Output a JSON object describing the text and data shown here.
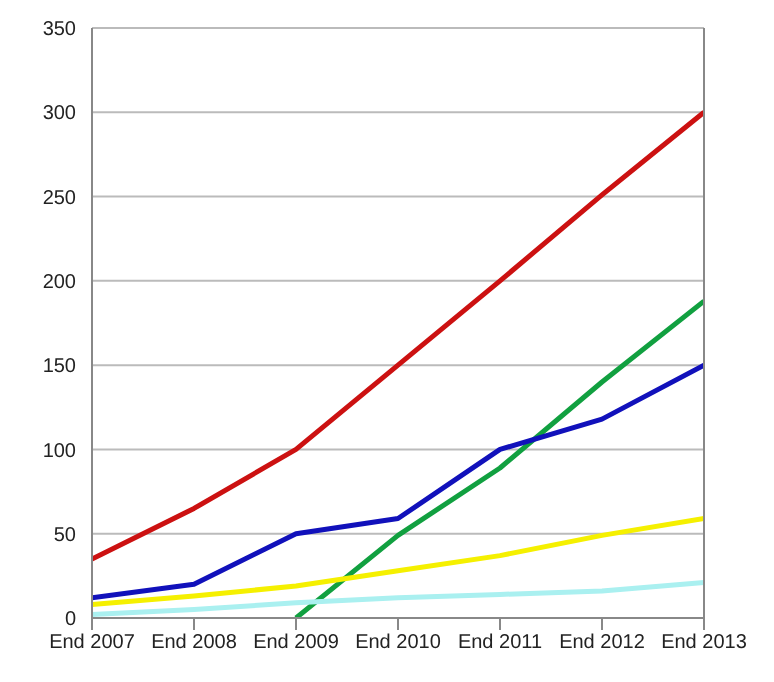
{
  "chart_data": {
    "type": "line",
    "categories": [
      "End 2007",
      "End 2008",
      "End 2009",
      "End 2010",
      "End 2011",
      "End 2012",
      "End 2013"
    ],
    "series": [
      {
        "color": "#cc1111",
        "values": [
          35,
          65,
          100,
          150,
          200,
          251,
          300
        ]
      },
      {
        "color": "#11a040",
        "values": [
          null,
          null,
          0,
          49,
          89,
          140,
          188
        ]
      },
      {
        "color": "#1111bb",
        "values": [
          12,
          20,
          50,
          59,
          100,
          118,
          150
        ]
      },
      {
        "color": "#f5f000",
        "values": [
          8,
          13,
          19,
          28,
          37,
          49,
          59
        ]
      },
      {
        "color": "#aaf0f0",
        "values": [
          2,
          5,
          9,
          12,
          14,
          16,
          21
        ]
      }
    ],
    "ylim": [
      0,
      350
    ],
    "yticks": [
      0,
      50,
      100,
      150,
      200,
      250,
      300,
      350
    ],
    "grid": "y",
    "legend": false,
    "marker": "none",
    "line_style": "solid"
  }
}
